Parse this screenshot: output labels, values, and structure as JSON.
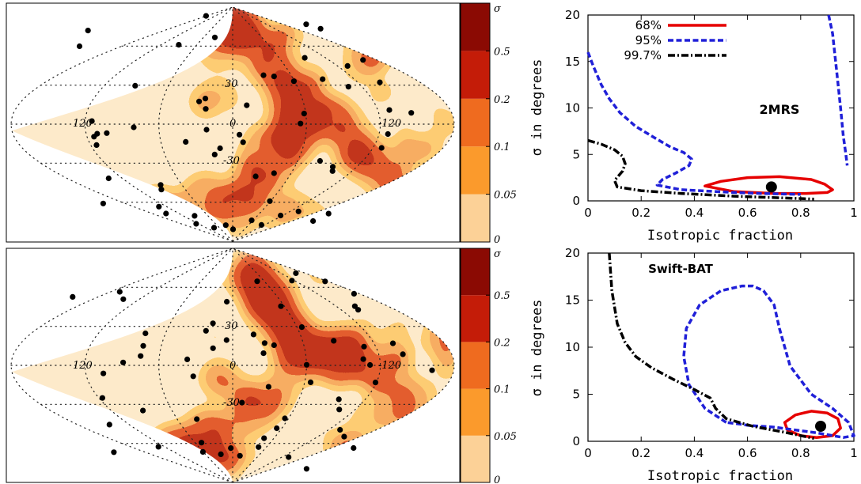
{
  "colors": {
    "level0": "#fcd197",
    "level1": "#fb9a2c",
    "level2": "#ef6b1f",
    "level3": "#c41c08",
    "level4": "#8b0a03",
    "source_dot": "#000000",
    "contour68": "#e60000",
    "contour95": "#2020d8",
    "contour997": "#000000"
  },
  "sky_maps": [
    {
      "colorbar_ticks": [
        "0",
        "0.05",
        "0.1",
        "0.2",
        "0.5",
        "σ"
      ],
      "grid_labels": {
        "lon_left": "120",
        "lon_center": "0",
        "lon_right": "-120",
        "lat_top": "30",
        "lat_bottom": "-30"
      }
    },
    {
      "colorbar_ticks": [
        "0",
        "0.05",
        "0.1",
        "0.2",
        "0.5",
        "σ"
      ],
      "grid_labels": {
        "lon_left": "120",
        "lon_center": "0",
        "lon_right": "-120",
        "lat_top": "30",
        "lat_bottom": "-30"
      }
    }
  ],
  "chart_data": [
    {
      "type": "line",
      "catalog_label": "2MRS",
      "xlabel": "Isotropic fraction",
      "ylabel": "σ in degrees",
      "xlim": [
        0,
        1
      ],
      "ylim": [
        0,
        20
      ],
      "x_ticks": [
        "0",
        "0.2",
        "0.4",
        "0.6",
        "0.8",
        "1"
      ],
      "y_ticks": [
        "0",
        "5",
        "10",
        "15",
        "20"
      ],
      "legend_position": "top-left",
      "best_fit": {
        "x": 0.69,
        "y": 1.5
      },
      "series": [
        {
          "name": "68%",
          "style": "solid",
          "closed": true,
          "x": [
            0.44,
            0.5,
            0.6,
            0.72,
            0.84,
            0.89,
            0.92,
            0.9,
            0.82,
            0.7,
            0.55,
            0.44
          ],
          "y": [
            1.6,
            2.1,
            2.5,
            2.6,
            2.3,
            1.8,
            1.2,
            0.9,
            0.8,
            0.8,
            1.0,
            1.6
          ]
        },
        {
          "name": "95%",
          "style": "dashed",
          "closed": false,
          "x": [
            0.0,
            0.02,
            0.05,
            0.08,
            0.12,
            0.18,
            0.25,
            0.31,
            0.36,
            0.39,
            0.38,
            0.33,
            0.28,
            0.26,
            0.35,
            0.55,
            0.65,
            0.8
          ],
          "y": [
            16.0,
            14.5,
            12.5,
            11.0,
            9.5,
            8.0,
            6.8,
            5.8,
            5.2,
            4.5,
            3.8,
            3.0,
            2.3,
            1.7,
            1.2,
            0.9,
            0.8,
            0.7
          ]
        },
        {
          "name": "95%",
          "style": "dashed",
          "closed": false,
          "x": [
            0.905,
            0.92,
            0.935,
            0.95,
            0.96,
            0.97,
            0.975
          ],
          "y": [
            20.0,
            18.0,
            14.0,
            10.0,
            7.0,
            5.0,
            3.8
          ]
        },
        {
          "name": "99.7%",
          "style": "dashdot",
          "closed": false,
          "x": [
            0.0,
            0.05,
            0.1,
            0.13,
            0.14,
            0.13,
            0.1,
            0.11,
            0.2,
            0.35,
            0.55,
            0.75,
            0.85
          ],
          "y": [
            6.5,
            6.1,
            5.5,
            4.8,
            4.0,
            3.2,
            2.2,
            1.5,
            1.1,
            0.8,
            0.5,
            0.3,
            0.2
          ]
        }
      ]
    },
    {
      "type": "line",
      "catalog_label": "Swift-BAT",
      "xlabel": "Isotropic fraction",
      "ylabel": "σ in degrees",
      "xlim": [
        0,
        1
      ],
      "ylim": [
        0,
        20
      ],
      "x_ticks": [
        "0",
        "0.2",
        "0.4",
        "0.6",
        "0.8",
        "1"
      ],
      "y_ticks": [
        "0",
        "5",
        "10",
        "15",
        "20"
      ],
      "best_fit": {
        "x": 0.875,
        "y": 1.6
      },
      "series": [
        {
          "name": "68%",
          "style": "solid",
          "closed": true,
          "x": [
            0.74,
            0.78,
            0.84,
            0.9,
            0.94,
            0.95,
            0.92,
            0.86,
            0.8,
            0.75,
            0.74
          ],
          "y": [
            2.0,
            2.8,
            3.2,
            3.0,
            2.4,
            1.4,
            0.6,
            0.4,
            0.6,
            1.2,
            2.0
          ]
        },
        {
          "name": "95%",
          "style": "dashed",
          "closed": false,
          "x": [
            0.52,
            0.44,
            0.38,
            0.36,
            0.37,
            0.42,
            0.5,
            0.58,
            0.62,
            0.66,
            0.7,
            0.72,
            0.76,
            0.84,
            0.92,
            0.98,
            1.0,
            0.96,
            0.86,
            0.7,
            0.6,
            0.58,
            0.55,
            0.52
          ],
          "y": [
            2.0,
            3.5,
            6.0,
            9.0,
            12.0,
            14.5,
            16.0,
            16.5,
            16.5,
            16.0,
            14.5,
            12.0,
            8.0,
            5.0,
            3.5,
            2.0,
            0.6,
            0.4,
            0.9,
            1.5,
            1.7,
            1.8,
            1.9,
            2.0
          ]
        },
        {
          "name": "99.7%",
          "style": "dashdot",
          "closed": false,
          "x": [
            0.08,
            0.09,
            0.11,
            0.14,
            0.18,
            0.24,
            0.32,
            0.4,
            0.46,
            0.48,
            0.52,
            0.62,
            0.75,
            0.85
          ],
          "y": [
            20.0,
            16.0,
            12.5,
            10.5,
            9.0,
            7.8,
            6.6,
            5.5,
            4.6,
            3.5,
            2.4,
            1.6,
            0.9,
            0.3
          ]
        }
      ]
    }
  ]
}
